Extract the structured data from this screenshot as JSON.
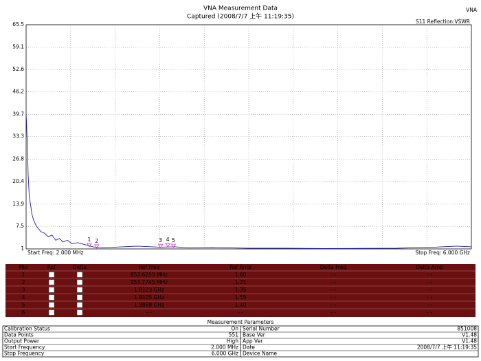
{
  "header": {
    "app": "VNA",
    "title": "VNA Measurement Data",
    "subtitle": "Captured (2008/7/7 上午 11:19:35)"
  },
  "chart_data": {
    "type": "line",
    "trace_label": "S11 Reflection:VSWR",
    "x": [
      2,
      10,
      20,
      30,
      45,
      60,
      80,
      100,
      130,
      160,
      200,
      250,
      300,
      350,
      400,
      450,
      500,
      560,
      620,
      700,
      800,
      900,
      1000,
      1200,
      1500,
      1800,
      2000,
      2200,
      2500,
      3000,
      3500,
      4000,
      4500,
      5000,
      5500,
      5800,
      6000
    ],
    "values": [
      40,
      36,
      30,
      22,
      16,
      14,
      11,
      9.5,
      8,
      7,
      6,
      5.5,
      4.5,
      5,
      3.5,
      4,
      3,
      3.5,
      2.5,
      2.8,
      2.2,
      1.6,
      1.3,
      1.5,
      1.8,
      1.5,
      1.6,
      1.3,
      1.4,
      1.2,
      1.2,
      1.1,
      1.15,
      1.2,
      1.5,
      1.8,
      1.6
    ],
    "color": "#1c1ca8",
    "xlim": [
      2,
      6000
    ],
    "ylim": [
      1,
      65.5
    ],
    "yticks": [
      1,
      7.5,
      13.9,
      20.4,
      26.8,
      33.3,
      39.7,
      46.2,
      52.6,
      59.1,
      65.5
    ],
    "grid": true,
    "start_label": "Start Freq: 2.000 MHz",
    "stop_label": "Stop Freq: 6.000 GHz",
    "marker_color": "#e020e0",
    "markers": [
      {
        "label": "1",
        "x": 852.6255,
        "y": 1.6
      },
      {
        "label": "2",
        "x": 953.7745,
        "y": 1.21
      },
      {
        "label": "3",
        "x": 1812.3,
        "y": 1.35
      },
      {
        "label": "4",
        "x": 1910.5,
        "y": 1.55
      },
      {
        "label": "5",
        "x": 1986.8,
        "y": 1.4
      }
    ]
  },
  "marker_table": {
    "columns": [
      "Mkr",
      "Ref",
      "Delta",
      "Ref Freq",
      "Ref Amp",
      "Delta Freq",
      "Delta Amp"
    ],
    "rows": [
      [
        "1",
        "852.6255 MHz",
        "1.60",
        "- -",
        "- -"
      ],
      [
        "2",
        "953.7745 MHz",
        "1.21",
        "- -",
        "- -"
      ],
      [
        "3",
        "1.8123 GHz",
        "1.35",
        "- -",
        "- -"
      ],
      [
        "4",
        "1.9105 GHz",
        "1.55",
        "- -",
        "- -"
      ],
      [
        "5",
        "1.9868 GHz",
        "1.40",
        "- -",
        "- -"
      ],
      [
        "6",
        "- -",
        "- -",
        "- -",
        "- -"
      ]
    ]
  },
  "parameters": {
    "title": "Measurement Parameters",
    "rows": [
      [
        "Calibration Status",
        "On",
        "Serial Number",
        "851008"
      ],
      [
        "Data Points",
        "551",
        "Base Ver",
        "V1.48"
      ],
      [
        "Output Power",
        "High",
        "App Ver",
        "V1.48"
      ],
      [
        "Start Frequency",
        "2.000 MHz",
        "Date",
        "2008/7/7 上午 11:19:35"
      ],
      [
        "Stop Frequency",
        "6.000 GHz",
        "Device Name"
      ]
    ]
  }
}
